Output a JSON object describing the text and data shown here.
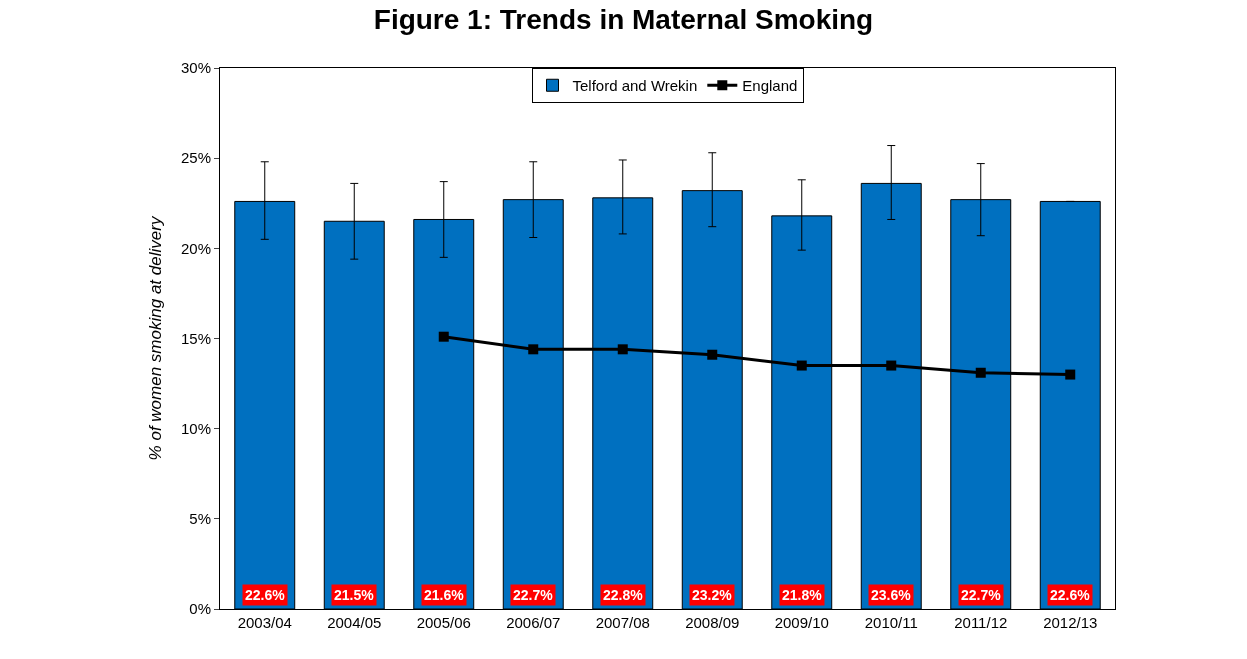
{
  "chart_data": {
    "type": "bar",
    "title": "Figure 1: Trends in Maternal Smoking",
    "ylabel": "% of women smoking at delivery",
    "categories": [
      "2003/04",
      "2004/05",
      "2005/06",
      "2006/07",
      "2007/08",
      "2008/09",
      "2009/10",
      "2010/11",
      "2011/12",
      "2012/13"
    ],
    "series": [
      {
        "name": "Telford and Wrekin",
        "color": "#0070c0",
        "values": [
          22.6,
          21.5,
          21.6,
          22.7,
          22.8,
          23.2,
          21.8,
          23.6,
          22.7,
          22.6
        ],
        "errors": [
          [
            20.5,
            24.8
          ],
          [
            19.4,
            23.6
          ],
          [
            19.5,
            23.7
          ],
          [
            20.6,
            24.8
          ],
          [
            20.8,
            24.9
          ],
          [
            21.2,
            25.3
          ],
          [
            19.9,
            23.8
          ],
          [
            21.6,
            25.7
          ],
          [
            20.7,
            24.7
          ],
          null
        ],
        "value_labels": [
          "22.6%",
          "21.5%",
          "21.6%",
          "22.7%",
          "22.8%",
          "23.2%",
          "21.8%",
          "23.6%",
          "22.7%",
          "22.6%"
        ]
      },
      {
        "name": "England",
        "type": "line",
        "color": "#000000",
        "marker": "square",
        "values": [
          null,
          null,
          15.1,
          14.4,
          14.4,
          14.1,
          13.5,
          13.5,
          13.1,
          13.0
        ]
      }
    ],
    "ylim": [
      0,
      30
    ],
    "yticks": [
      {
        "value": 0,
        "label": "0%"
      },
      {
        "value": 5,
        "label": "5%"
      },
      {
        "value": 10,
        "label": "10%"
      },
      {
        "value": 15,
        "label": "15%"
      },
      {
        "value": 20,
        "label": "20%"
      },
      {
        "value": 25,
        "label": "25%"
      },
      {
        "value": 30,
        "label": "30%"
      }
    ],
    "grid": false,
    "legend": "top"
  }
}
